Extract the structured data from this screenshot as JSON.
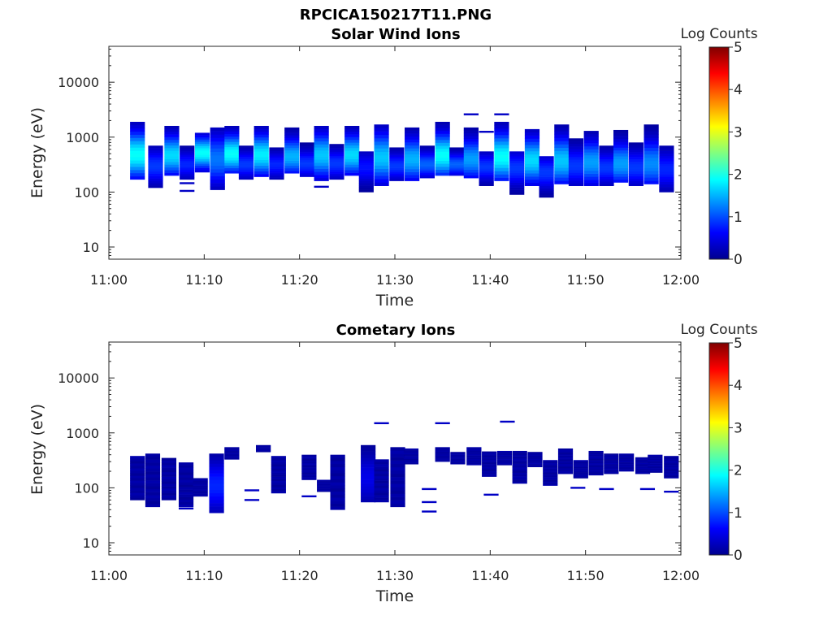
{
  "figure_title": "RPCICA150217T11.PNG",
  "colormap": [
    "#00008f",
    "#0000ff",
    "#0080ff",
    "#00ffff",
    "#80ff80",
    "#ffff00",
    "#ff8000",
    "#ff0000",
    "#800000"
  ],
  "chart_data": [
    {
      "type": "heatmap",
      "title": "Solar Wind Ions",
      "xlabel": "Time",
      "ylabel": "Energy (eV)",
      "y_scale": "log",
      "ylim": [
        6,
        45000
      ],
      "xlim": [
        "11:00",
        "12:00"
      ],
      "x_ticks": [
        "11:00",
        "11:10",
        "11:20",
        "11:30",
        "11:40",
        "11:50",
        "12:00"
      ],
      "y_ticks": [
        "10",
        "100",
        "1000",
        "10000"
      ],
      "colorbar": {
        "label": "Log Counts",
        "range": [
          0,
          5
        ],
        "ticks": [
          "0",
          "1",
          "2",
          "3",
          "4",
          "5"
        ]
      },
      "columns": [
        {
          "t": 3.0,
          "ylo": 170,
          "yhi": 1900,
          "peak": 1.9,
          "center": 480
        },
        {
          "t": 4.9,
          "ylo": 120,
          "yhi": 700,
          "peak": 0.9,
          "center": 300
        },
        {
          "t": 6.6,
          "ylo": 200,
          "yhi": 1600,
          "peak": 1.7,
          "center": 470
        },
        {
          "t": 8.2,
          "ylo": 170,
          "yhi": 700,
          "peak": 0.8,
          "center": 320
        },
        {
          "t": 9.8,
          "ylo": 230,
          "yhi": 1200,
          "peak": 1.9,
          "center": 520
        },
        {
          "t": 11.4,
          "ylo": 110,
          "yhi": 1500,
          "peak": 1.2,
          "center": 400
        },
        {
          "t": 12.9,
          "ylo": 220,
          "yhi": 1600,
          "peak": 1.9,
          "center": 500
        },
        {
          "t": 14.4,
          "ylo": 170,
          "yhi": 700,
          "peak": 0.9,
          "center": 320
        },
        {
          "t": 16.0,
          "ylo": 190,
          "yhi": 1600,
          "peak": 1.8,
          "center": 480
        },
        {
          "t": 17.6,
          "ylo": 170,
          "yhi": 650,
          "peak": 0.8,
          "center": 320
        },
        {
          "t": 19.2,
          "ylo": 220,
          "yhi": 1500,
          "peak": 1.5,
          "center": 450
        },
        {
          "t": 20.8,
          "ylo": 190,
          "yhi": 800,
          "peak": 0.9,
          "center": 330
        },
        {
          "t": 22.3,
          "ylo": 160,
          "yhi": 1600,
          "peak": 1.6,
          "center": 470
        },
        {
          "t": 23.9,
          "ylo": 170,
          "yhi": 750,
          "peak": 0.9,
          "center": 330
        },
        {
          "t": 25.5,
          "ylo": 200,
          "yhi": 1600,
          "peak": 1.7,
          "center": 480
        },
        {
          "t": 27.0,
          "ylo": 100,
          "yhi": 550,
          "peak": 0.7,
          "center": 280
        },
        {
          "t": 28.6,
          "ylo": 130,
          "yhi": 1700,
          "peak": 1.6,
          "center": 430
        },
        {
          "t": 30.2,
          "ylo": 160,
          "yhi": 650,
          "peak": 0.9,
          "center": 300
        },
        {
          "t": 31.8,
          "ylo": 160,
          "yhi": 1500,
          "peak": 1.5,
          "center": 400
        },
        {
          "t": 33.4,
          "ylo": 180,
          "yhi": 700,
          "peak": 1.1,
          "center": 320
        },
        {
          "t": 35.0,
          "ylo": 200,
          "yhi": 1900,
          "peak": 1.9,
          "center": 470
        },
        {
          "t": 36.5,
          "ylo": 200,
          "yhi": 650,
          "peak": 1.1,
          "center": 320
        },
        {
          "t": 38.0,
          "ylo": 180,
          "yhi": 1500,
          "peak": 1.4,
          "center": 400
        },
        {
          "t": 39.6,
          "ylo": 130,
          "yhi": 550,
          "peak": 0.9,
          "center": 290
        },
        {
          "t": 41.2,
          "ylo": 160,
          "yhi": 1900,
          "peak": 1.9,
          "center": 440
        },
        {
          "t": 42.8,
          "ylo": 90,
          "yhi": 550,
          "peak": 0.9,
          "center": 270
        },
        {
          "t": 44.4,
          "ylo": 130,
          "yhi": 1400,
          "peak": 1.7,
          "center": 380
        },
        {
          "t": 45.9,
          "ylo": 80,
          "yhi": 450,
          "peak": 0.9,
          "center": 230
        },
        {
          "t": 47.5,
          "ylo": 140,
          "yhi": 1700,
          "peak": 1.6,
          "center": 370
        },
        {
          "t": 49.0,
          "ylo": 130,
          "yhi": 950,
          "peak": 0.9,
          "center": 300
        },
        {
          "t": 50.6,
          "ylo": 130,
          "yhi": 1300,
          "peak": 1.4,
          "center": 350
        },
        {
          "t": 52.2,
          "ylo": 130,
          "yhi": 700,
          "peak": 0.9,
          "center": 280
        },
        {
          "t": 53.7,
          "ylo": 150,
          "yhi": 1350,
          "peak": 1.4,
          "center": 330
        },
        {
          "t": 55.3,
          "ylo": 130,
          "yhi": 800,
          "peak": 0.9,
          "center": 280
        },
        {
          "t": 56.9,
          "ylo": 140,
          "yhi": 1700,
          "peak": 1.3,
          "center": 330
        },
        {
          "t": 58.5,
          "ylo": 100,
          "yhi": 700,
          "peak": 0.8,
          "center": 260
        }
      ],
      "isolated_lines": [
        {
          "t": 8.2,
          "e": 145,
          "level": 0.3
        },
        {
          "t": 8.2,
          "e": 105,
          "level": 0.3
        },
        {
          "t": 22.3,
          "e": 125,
          "level": 0.3
        },
        {
          "t": 38.0,
          "e": 2600,
          "level": 0.3
        },
        {
          "t": 41.2,
          "e": 2600,
          "level": 0.3
        },
        {
          "t": 39.6,
          "e": 1250,
          "level": 0.3
        }
      ]
    },
    {
      "type": "heatmap",
      "title": "Cometary Ions",
      "xlabel": "Time",
      "ylabel": "Energy (eV)",
      "y_scale": "log",
      "ylim": [
        6,
        45000
      ],
      "xlim": [
        "11:00",
        "12:00"
      ],
      "x_ticks": [
        "11:00",
        "11:10",
        "11:20",
        "11:30",
        "11:40",
        "11:50",
        "12:00"
      ],
      "y_ticks": [
        "10",
        "100",
        "1000",
        "10000"
      ],
      "colorbar": {
        "label": "Log Counts",
        "range": [
          0,
          5
        ],
        "ticks": [
          "0",
          "1",
          "2",
          "3",
          "4",
          "5"
        ]
      },
      "columns": [
        {
          "t": 3.0,
          "ylo": 60,
          "yhi": 380,
          "peak": 0.3,
          "center": 120
        },
        {
          "t": 4.6,
          "ylo": 45,
          "yhi": 420,
          "peak": 0.3,
          "center": 110
        },
        {
          "t": 6.3,
          "ylo": 60,
          "yhi": 350,
          "peak": 0.3,
          "center": 120
        },
        {
          "t": 8.1,
          "ylo": 45,
          "yhi": 290,
          "peak": 0.3,
          "center": 90
        },
        {
          "t": 9.6,
          "ylo": 70,
          "yhi": 150,
          "peak": 0.3,
          "center": 100
        },
        {
          "t": 11.3,
          "ylo": 35,
          "yhi": 420,
          "peak": 0.8,
          "center": 110
        },
        {
          "t": 12.9,
          "ylo": 330,
          "yhi": 550,
          "peak": 0.3,
          "center": 420
        },
        {
          "t": 16.2,
          "ylo": 450,
          "yhi": 600,
          "peak": 0.3,
          "center": 520
        },
        {
          "t": 17.8,
          "ylo": 80,
          "yhi": 380,
          "peak": 0.3,
          "center": 170
        },
        {
          "t": 21.0,
          "ylo": 140,
          "yhi": 400,
          "peak": 0.3,
          "center": 230
        },
        {
          "t": 22.6,
          "ylo": 85,
          "yhi": 140,
          "peak": 0.3,
          "center": 110
        },
        {
          "t": 24.0,
          "ylo": 40,
          "yhi": 400,
          "peak": 0.3,
          "center": 110
        },
        {
          "t": 27.2,
          "ylo": 55,
          "yhi": 600,
          "peak": 0.5,
          "center": 150
        },
        {
          "t": 28.6,
          "ylo": 55,
          "yhi": 330,
          "peak": 0.3,
          "center": 120
        },
        {
          "t": 30.3,
          "ylo": 45,
          "yhi": 550,
          "peak": 0.3,
          "center": 150
        },
        {
          "t": 31.7,
          "ylo": 270,
          "yhi": 520,
          "peak": 0.3,
          "center": 380
        },
        {
          "t": 35.0,
          "ylo": 300,
          "yhi": 550,
          "peak": 0.3,
          "center": 400
        },
        {
          "t": 36.6,
          "ylo": 270,
          "yhi": 450,
          "peak": 0.3,
          "center": 350
        },
        {
          "t": 38.3,
          "ylo": 260,
          "yhi": 550,
          "peak": 0.3,
          "center": 380
        },
        {
          "t": 39.9,
          "ylo": 160,
          "yhi": 460,
          "peak": 0.3,
          "center": 280
        },
        {
          "t": 41.5,
          "ylo": 260,
          "yhi": 470,
          "peak": 0.3,
          "center": 350
        },
        {
          "t": 43.1,
          "ylo": 120,
          "yhi": 470,
          "peak": 0.3,
          "center": 250
        },
        {
          "t": 44.7,
          "ylo": 240,
          "yhi": 450,
          "peak": 0.3,
          "center": 330
        },
        {
          "t": 46.3,
          "ylo": 110,
          "yhi": 320,
          "peak": 0.3,
          "center": 200
        },
        {
          "t": 47.9,
          "ylo": 180,
          "yhi": 520,
          "peak": 0.3,
          "center": 300
        },
        {
          "t": 49.5,
          "ylo": 150,
          "yhi": 320,
          "peak": 0.3,
          "center": 220
        },
        {
          "t": 51.1,
          "ylo": 170,
          "yhi": 470,
          "peak": 0.3,
          "center": 280
        },
        {
          "t": 52.7,
          "ylo": 180,
          "yhi": 420,
          "peak": 0.3,
          "center": 280
        },
        {
          "t": 54.3,
          "ylo": 200,
          "yhi": 420,
          "peak": 0.3,
          "center": 290
        },
        {
          "t": 56.0,
          "ylo": 180,
          "yhi": 360,
          "peak": 0.3,
          "center": 260
        },
        {
          "t": 57.3,
          "ylo": 190,
          "yhi": 400,
          "peak": 0.3,
          "center": 270
        },
        {
          "t": 59.0,
          "ylo": 150,
          "yhi": 380,
          "peak": 0.3,
          "center": 240
        }
      ],
      "isolated_lines": [
        {
          "t": 28.6,
          "e": 1500,
          "level": 0.3
        },
        {
          "t": 35.0,
          "e": 1500,
          "level": 0.3
        },
        {
          "t": 41.8,
          "e": 1600,
          "level": 0.3
        },
        {
          "t": 33.6,
          "e": 95,
          "level": 0.3
        },
        {
          "t": 33.6,
          "e": 55,
          "level": 0.3
        },
        {
          "t": 33.6,
          "e": 37,
          "level": 0.3
        },
        {
          "t": 40.1,
          "e": 75,
          "level": 0.3
        },
        {
          "t": 15.0,
          "e": 60,
          "level": 0.3
        },
        {
          "t": 15.0,
          "e": 90,
          "level": 0.3
        },
        {
          "t": 8.1,
          "e": 42,
          "level": 0.3
        },
        {
          "t": 21.0,
          "e": 70,
          "level": 0.3
        },
        {
          "t": 49.2,
          "e": 100,
          "level": 0.3
        },
        {
          "t": 52.2,
          "e": 95,
          "level": 0.3
        },
        {
          "t": 56.5,
          "e": 95,
          "level": 0.3
        },
        {
          "t": 59.0,
          "e": 85,
          "level": 0.3
        }
      ]
    }
  ]
}
